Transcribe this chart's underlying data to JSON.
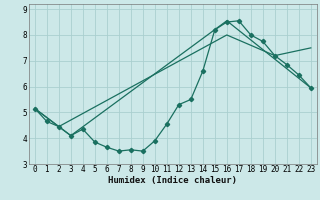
{
  "xlabel": "Humidex (Indice chaleur)",
  "bg_color": "#cce8e8",
  "line_color": "#1a7060",
  "grid_color": "#aacfcf",
  "xlim": [
    -0.5,
    23.5
  ],
  "ylim": [
    3,
    9.2
  ],
  "xticks": [
    0,
    1,
    2,
    3,
    4,
    5,
    6,
    7,
    8,
    9,
    10,
    11,
    12,
    13,
    14,
    15,
    16,
    17,
    18,
    19,
    20,
    21,
    22,
    23
  ],
  "yticks": [
    3,
    4,
    5,
    6,
    7,
    8,
    9
  ],
  "line1_x": [
    0,
    1,
    2,
    3,
    4,
    5,
    6,
    7,
    8,
    9,
    10,
    11,
    12,
    13,
    14,
    15,
    16,
    17,
    18,
    19,
    20,
    21,
    22,
    23
  ],
  "line1_y": [
    5.15,
    4.65,
    4.45,
    4.1,
    4.35,
    3.85,
    3.65,
    3.5,
    3.55,
    3.5,
    3.9,
    4.55,
    5.3,
    5.5,
    6.6,
    8.2,
    8.5,
    8.55,
    8.0,
    7.75,
    7.2,
    6.85,
    6.45,
    5.95
  ],
  "line2_x": [
    0,
    3,
    16,
    23
  ],
  "line2_y": [
    5.15,
    4.1,
    8.55,
    5.95
  ],
  "line3_x": [
    0,
    2,
    16,
    20,
    23
  ],
  "line3_y": [
    5.15,
    4.45,
    8.0,
    7.2,
    7.5
  ]
}
